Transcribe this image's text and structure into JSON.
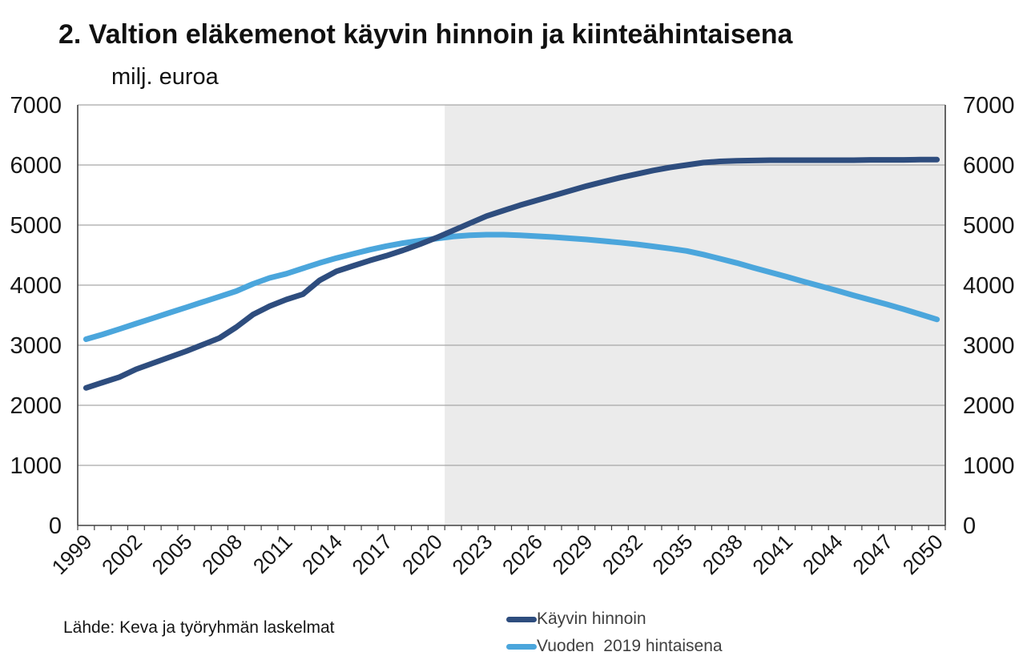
{
  "title": "2. Valtion eläkemenot käyvin hinnoin ja kiinteähintaisena",
  "subtitle": "milj. euroa",
  "source": "Lähde: Keva ja työryhmän laskelmat",
  "colors": {
    "series_current_prices": "#2E4D7E",
    "series_2019_prices": "#4BA6DC",
    "forecast_shade": "#EBEBEB",
    "gridline": "#A6A6A6",
    "axis": "#404040",
    "text": "#161616"
  },
  "chart_data": {
    "type": "line",
    "title": "2. Valtion eläkemenot käyvin hinnoin ja kiinteähintaisena",
    "ylabel": "milj. euroa",
    "ylim": [
      0,
      7000
    ],
    "y_ticks": [
      0,
      1000,
      2000,
      3000,
      4000,
      5000,
      6000,
      7000
    ],
    "y_axis_labels_both_sides": true,
    "grid": "horizontal",
    "legend_position": "bottom",
    "x_label_interval": 3,
    "x_tick_labels": [
      "1999",
      "2002",
      "2005",
      "2008",
      "2011",
      "2014",
      "2017",
      "2020",
      "2023",
      "2026",
      "2029",
      "2032",
      "2035",
      "2038",
      "2041",
      "2044",
      "2047",
      "2050"
    ],
    "forecast_shading_from": 2021,
    "x": [
      1999,
      2000,
      2001,
      2002,
      2003,
      2004,
      2005,
      2006,
      2007,
      2008,
      2009,
      2010,
      2011,
      2012,
      2013,
      2014,
      2015,
      2016,
      2017,
      2018,
      2019,
      2020,
      2021,
      2022,
      2023,
      2024,
      2025,
      2026,
      2027,
      2028,
      2029,
      2030,
      2031,
      2032,
      2033,
      2034,
      2035,
      2036,
      2037,
      2038,
      2039,
      2040,
      2041,
      2042,
      2043,
      2044,
      2045,
      2046,
      2047,
      2048,
      2049,
      2050
    ],
    "series": [
      {
        "id": "kayvin-hinnoin",
        "name": "Käyvin hinnoin",
        "color": "#2E4D7E",
        "values": [
          2290,
          2380,
          2470,
          2600,
          2700,
          2800,
          2900,
          3010,
          3120,
          3300,
          3510,
          3650,
          3760,
          3850,
          4080,
          4230,
          4320,
          4410,
          4490,
          4580,
          4680,
          4790,
          4910,
          5030,
          5150,
          5240,
          5330,
          5410,
          5490,
          5570,
          5650,
          5720,
          5790,
          5850,
          5910,
          5960,
          6000,
          6040,
          6060,
          6070,
          6075,
          6080,
          6080,
          6080,
          6080,
          6080,
          6080,
          6085,
          6085,
          6085,
          6090,
          6090
        ]
      },
      {
        "id": "vuoden-2019-hintaisena",
        "name": "Vuoden  2019 hintaisena",
        "color": "#4BA6DC",
        "values": [
          3100,
          3180,
          3270,
          3360,
          3450,
          3540,
          3630,
          3720,
          3810,
          3900,
          4020,
          4120,
          4190,
          4280,
          4370,
          4450,
          4520,
          4590,
          4650,
          4700,
          4740,
          4775,
          4810,
          4830,
          4840,
          4840,
          4830,
          4815,
          4800,
          4780,
          4760,
          4735,
          4710,
          4680,
          4645,
          4610,
          4570,
          4510,
          4440,
          4370,
          4290,
          4215,
          4140,
          4060,
          3985,
          3910,
          3830,
          3755,
          3680,
          3600,
          3515,
          3430
        ]
      }
    ]
  }
}
